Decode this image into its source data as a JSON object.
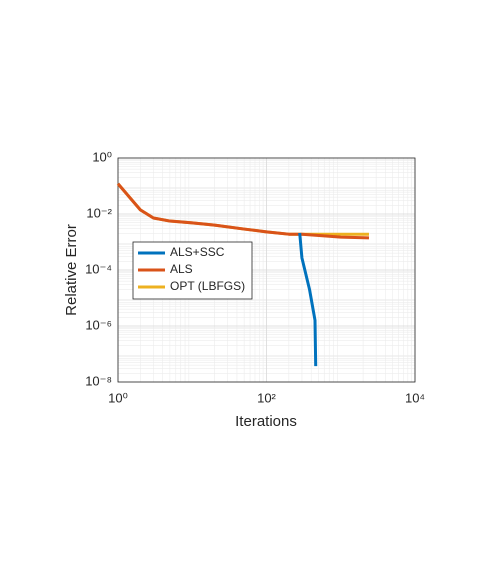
{
  "chart_data": {
    "type": "line",
    "xlabel": "Iterations",
    "ylabel": "Relative Error",
    "xscale": "log",
    "yscale": "log",
    "xlim": [
      1,
      10000
    ],
    "ylim": [
      1e-08,
      1
    ],
    "xticks": [
      {
        "value": 1,
        "label": "10⁰"
      },
      {
        "value": 100,
        "label": "10²"
      },
      {
        "value": 10000,
        "label": "10⁴"
      }
    ],
    "yticks": [
      {
        "value": 1e-08,
        "label": "10⁻⁸"
      },
      {
        "value": 1e-06,
        "label": "10⁻⁶"
      },
      {
        "value": 0.0001,
        "label": "10⁻⁴"
      },
      {
        "value": 0.01,
        "label": "10⁻²"
      },
      {
        "value": 1,
        "label": "10⁰"
      }
    ],
    "grid": true,
    "legend": "left",
    "series": [
      {
        "name": "ALS+SSC",
        "color": "#0072bd",
        "x": [
          280,
          300,
          380,
          450,
          460
        ],
        "values": [
          0.0021,
          0.00027,
          2e-05,
          1.6e-06,
          3.7e-08
        ]
      },
      {
        "name": "ALS",
        "color": "#d95319",
        "x": [
          1,
          2,
          3,
          5,
          10,
          20,
          50,
          100,
          200,
          300,
          700,
          1000,
          2400
        ],
        "values": [
          0.12,
          0.014,
          0.0072,
          0.0056,
          0.0048,
          0.004,
          0.0029,
          0.0023,
          0.0019,
          0.0019,
          0.0016,
          0.0015,
          0.0014
        ]
      },
      {
        "name": "OPT (LBFGS)",
        "color": "#edb120",
        "x": [
          1,
          2,
          3,
          5,
          10,
          20,
          50,
          100,
          200,
          2400
        ],
        "values": [
          0.12,
          0.014,
          0.0072,
          0.0056,
          0.0048,
          0.004,
          0.0029,
          0.0023,
          0.0019,
          0.0019
        ]
      }
    ]
  }
}
